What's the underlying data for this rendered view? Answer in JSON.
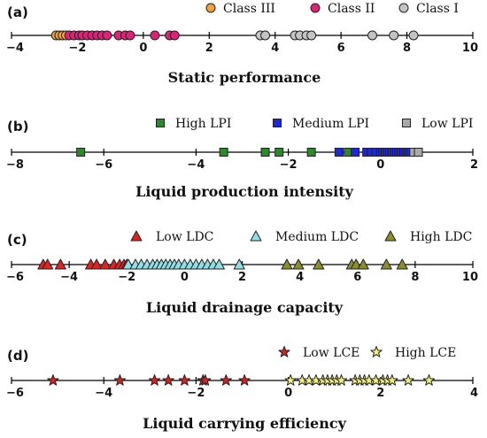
{
  "chart_data": [
    {
      "type": "scatter",
      "panel_label": "(a)",
      "title": "Static performance",
      "xlabel": "",
      "ylabel": "",
      "xlim": [
        -4,
        10
      ],
      "ticks": [
        -4,
        -2,
        0,
        2,
        4,
        6,
        8,
        10
      ],
      "tick_labels": [
        "−4",
        "−2",
        "0",
        "2",
        "4",
        "6",
        "8",
        "10"
      ],
      "marker": "circle",
      "legend_position": "top-right",
      "series": [
        {
          "name": "Class III",
          "color": "#f4a238",
          "x": [
            -2.65,
            -2.55,
            -2.45,
            -2.35
          ]
        },
        {
          "name": "Class II",
          "color": "#e0217a",
          "x": [
            -2.25,
            -2.1,
            -1.95,
            -1.85,
            -1.7,
            -1.55,
            -1.4,
            -1.25,
            -1.1,
            -0.75,
            -0.55,
            -0.4,
            0.35,
            0.8,
            0.95
          ]
        },
        {
          "name": "Class I",
          "color": "#c4c4c4",
          "x": [
            3.55,
            3.7,
            4.6,
            4.75,
            4.95,
            5.1,
            6.95,
            7.6,
            8.2
          ]
        }
      ]
    },
    {
      "type": "scatter",
      "panel_label": "(b)",
      "title": "Liquid production intensity",
      "xlabel": "",
      "ylabel": "",
      "xlim": [
        -8,
        2
      ],
      "ticks": [
        -8,
        -6,
        -4,
        -2,
        0,
        2
      ],
      "tick_labels": [
        "−8",
        "−6",
        "−4",
        "−2",
        "0",
        "2"
      ],
      "marker": "square",
      "legend_position": "top-right",
      "series": [
        {
          "name": "High LPI",
          "color": "#2a8a2a",
          "x": [
            -6.5,
            -3.4,
            -2.5,
            -2.2,
            -1.5,
            -0.9,
            -0.7
          ]
        },
        {
          "name": "Medium LPI",
          "color": "#1d28d8",
          "x": [
            -0.9,
            -0.55,
            -0.3,
            -0.2,
            -0.1,
            0.0,
            0.05,
            0.1,
            0.15,
            0.2,
            0.25,
            0.3,
            0.35,
            0.4,
            0.45,
            0.5,
            0.55,
            0.6,
            0.65
          ]
        },
        {
          "name": "Low LPI",
          "color": "#a8a8a8",
          "x": [
            0.72,
            0.82
          ]
        }
      ]
    },
    {
      "type": "scatter",
      "panel_label": "(c)",
      "title": "Liquid drainage capacity",
      "xlabel": "",
      "ylabel": "",
      "xlim": [
        -6,
        10
      ],
      "ticks": [
        -6,
        -4,
        -2,
        0,
        2,
        4,
        6,
        8,
        10
      ],
      "tick_labels": [
        "−6",
        "−4",
        "−2",
        "0",
        "2",
        "4",
        "6",
        "8",
        "10"
      ],
      "marker": "triangle",
      "legend_position": "top-right",
      "series": [
        {
          "name": "Low LDC",
          "color": "#e02222",
          "x": [
            -4.9,
            -4.75,
            -4.3,
            -3.25,
            -3.05,
            -2.75,
            -2.45,
            -2.25,
            -2.1,
            -2.0
          ]
        },
        {
          "name": "Medium LDC",
          "color": "#8ee0e6",
          "x": [
            -1.95,
            -1.7,
            -1.5,
            -1.3,
            -1.1,
            -0.95,
            -0.8,
            -0.65,
            -0.5,
            -0.35,
            -0.2,
            0.0,
            0.2,
            0.4,
            0.6,
            0.8,
            1.0,
            1.2,
            1.9
          ]
        },
        {
          "name": "High LDC",
          "color": "#8a8f2a",
          "x": [
            3.55,
            3.95,
            4.65,
            5.8,
            5.95,
            6.2,
            7.0,
            7.55
          ]
        }
      ]
    },
    {
      "type": "scatter",
      "panel_label": "(d)",
      "title": "Liquid carrying efficiency",
      "xlabel": "",
      "ylabel": "",
      "xlim": [
        -6,
        4
      ],
      "ticks": [
        -6,
        -4,
        -2,
        0,
        2,
        4
      ],
      "tick_labels": [
        "−6",
        "−4",
        "−2",
        "0",
        "2",
        "4"
      ],
      "marker": "star",
      "legend_position": "top-right",
      "series": [
        {
          "name": "Low LCE",
          "color": "#d82020",
          "x": [
            -5.1,
            -3.65,
            -2.9,
            -2.6,
            -2.25,
            -1.85,
            -1.8,
            -1.35,
            -0.95
          ]
        },
        {
          "name": "High LCE",
          "color": "#f0f07a",
          "x": [
            0.05,
            0.3,
            0.45,
            0.6,
            0.75,
            0.85,
            0.95,
            1.05,
            1.15,
            1.45,
            1.55,
            1.65,
            1.75,
            1.9,
            2.05,
            2.15,
            2.25,
            2.6,
            3.05
          ]
        }
      ]
    }
  ]
}
